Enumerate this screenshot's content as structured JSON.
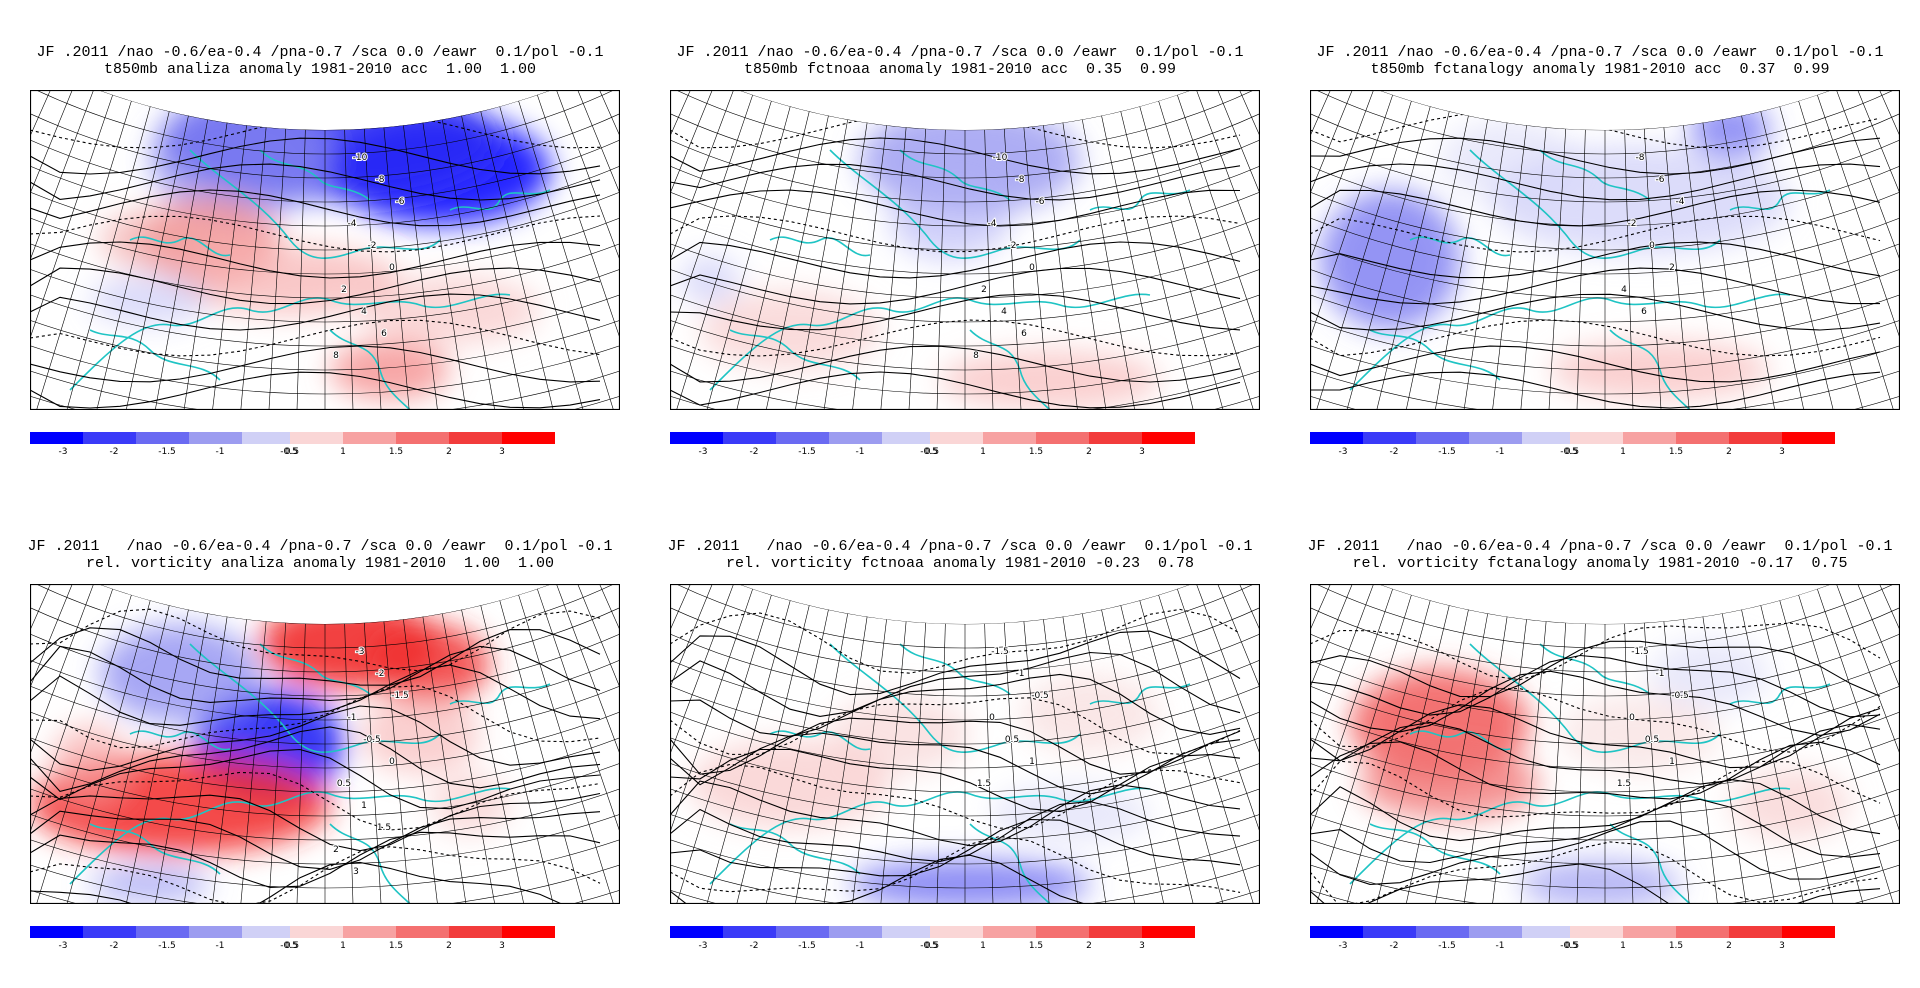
{
  "colorbar": {
    "segments": [
      {
        "color": "#0000ff",
        "label": "-3"
      },
      {
        "color": "#3a3af8",
        "label": "-2"
      },
      {
        "color": "#6a6af2",
        "label": "-1.5"
      },
      {
        "color": "#9c9cf0",
        "label": "-1"
      },
      {
        "color": "#d0d0f6",
        "label": "-0.5"
      },
      {
        "color": "#fad6d6",
        "label": "0.5"
      },
      {
        "color": "#f7a2a2",
        "label": "1"
      },
      {
        "color": "#f47070",
        "label": "1.5"
      },
      {
        "color": "#f23c3c",
        "label": "2"
      },
      {
        "color": "#ff0000",
        "label": "3"
      }
    ]
  },
  "chart_data": [
    {
      "type": "heatmap",
      "title": "JF .2011 /nao -0.6/ea-0.4 /pna-0.7 /sca 0.0 /eawr  0.1/pol -0.1",
      "subtitle": "t850mb analiza anomaly 1981-2010 acc  1.00  1.00",
      "acc": [
        1.0,
        1.0
      ],
      "colorbar_ticks": [
        -3,
        -2,
        -1.5,
        -1,
        -0.5,
        0.5,
        1,
        1.5,
        2,
        3
      ],
      "contour_labels": [
        "-10",
        "-8",
        "-6",
        "-4",
        "-2",
        "0",
        "2",
        "4",
        "6",
        "8"
      ]
    },
    {
      "type": "heatmap",
      "title": "JF .2011 /nao -0.6/ea-0.4 /pna-0.7 /sca 0.0 /eawr  0.1/pol -0.1",
      "subtitle": "t850mb fctnoaa anomaly 1981-2010 acc  0.35  0.99",
      "acc": [
        0.35,
        0.99
      ],
      "colorbar_ticks": [
        -3,
        -2,
        -1.5,
        -1,
        -0.5,
        0.5,
        1,
        1.5,
        2,
        3
      ],
      "contour_labels": [
        "-10",
        "-8",
        "-6",
        "-4",
        "-2",
        "0",
        "2",
        "4",
        "6",
        "8"
      ]
    },
    {
      "type": "heatmap",
      "title": "JF .2011 /nao -0.6/ea-0.4 /pna-0.7 /sca 0.0 /eawr  0.1/pol -0.1",
      "subtitle": "t850mb fctanalogy anomaly 1981-2010 acc  0.37  0.99",
      "acc": [
        0.37,
        0.99
      ],
      "colorbar_ticks": [
        -3,
        -2,
        -1.5,
        -1,
        -0.5,
        0.5,
        1,
        1.5,
        2,
        3
      ],
      "contour_labels": [
        "-8",
        "-6",
        "-4",
        "-2",
        "0",
        "2",
        "4",
        "6"
      ]
    },
    {
      "type": "heatmap",
      "title": "JF .2011   /nao -0.6/ea-0.4 /pna-0.7 /sca 0.0 /eawr  0.1/pol -0.1",
      "subtitle": "rel. vorticity analiza anomaly 1981-2010  1.00  1.00",
      "acc": [
        1.0,
        1.0
      ],
      "colorbar_ticks": [
        -3,
        -2,
        -1.5,
        -1,
        -0.5,
        0.5,
        1,
        1.5,
        2,
        3
      ],
      "contour_labels": [
        "-3",
        "-2",
        "-1.5",
        "-1",
        "-0.5",
        "0",
        "0.5",
        "1",
        "1.5",
        "2",
        "3"
      ]
    },
    {
      "type": "heatmap",
      "title": "JF .2011   /nao -0.6/ea-0.4 /pna-0.7 /sca 0.0 /eawr  0.1/pol -0.1",
      "subtitle": "rel. vorticity fctnoaa anomaly 1981-2010 -0.23  0.78",
      "acc": [
        -0.23,
        0.78
      ],
      "colorbar_ticks": [
        -3,
        -2,
        -1.5,
        -1,
        -0.5,
        0.5,
        1,
        1.5,
        2,
        3
      ],
      "contour_labels": [
        "-1.5",
        "-1",
        "-0.5",
        "0",
        "0.5",
        "1",
        "1.5"
      ]
    },
    {
      "type": "heatmap",
      "title": "JF .2011   /nao -0.6/ea-0.4 /pna-0.7 /sca 0.0 /eawr  0.1/pol -0.1",
      "subtitle": "rel. vorticity fctanalogy anomaly 1981-2010 -0.17  0.75",
      "acc": [
        -0.17,
        0.75
      ],
      "colorbar_ticks": [
        -3,
        -2,
        -1.5,
        -1,
        -0.5,
        0.5,
        1,
        1.5,
        2,
        3
      ],
      "contour_labels": [
        "-1.5",
        "-1",
        "-0.5",
        "0",
        "0.5",
        "1",
        "1.5"
      ]
    }
  ]
}
